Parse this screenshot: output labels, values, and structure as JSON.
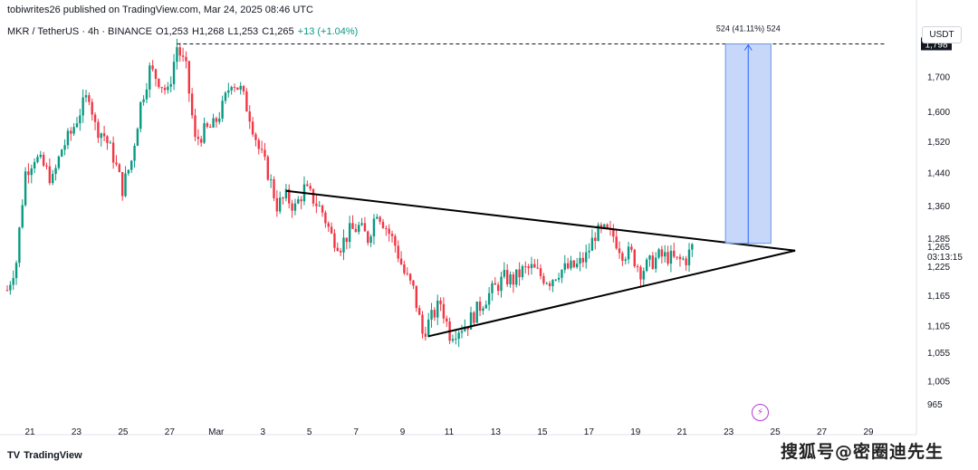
{
  "header": {
    "published": "tobiwrites26 published on TradingView.com, Mar 24, 2025 08:46 UTC",
    "symbol": "MKR / TetherUS · 4h · BINANCE",
    "open": "O1,253",
    "high": "H1,268",
    "low": "L1,253",
    "close": "C1,265",
    "change": "+13 (+1.04%)"
  },
  "currency_button": "USDT",
  "footer": {
    "logo_text": "TradingView",
    "watermark": "搜狐号@密圈迪先生"
  },
  "colors": {
    "up": "#089981",
    "down": "#f23645",
    "target_box": "#bcd0f9",
    "target_arrow": "#2962ff"
  },
  "chart_data": {
    "type": "candlestick",
    "interval": "4h",
    "x_tick_labels": [
      "21",
      "23",
      "25",
      "27",
      "Mar",
      "3",
      "5",
      "7",
      "9",
      "11",
      "13",
      "15",
      "17",
      "19",
      "21",
      "23",
      "25",
      "27",
      "29"
    ],
    "y_tick_labels": [
      1700,
      1600,
      1520,
      1440,
      1360,
      1285,
      1225,
      1165,
      1105,
      1055,
      1005,
      965
    ],
    "y_scale": "log",
    "ylim": [
      940,
      1880
    ],
    "last_price_label": "1,265",
    "countdown_label": "03:13:15",
    "target_price_label": "1,798",
    "measure_label": "524 (41.11%) 524",
    "price_path": [
      [
        0,
        1175
      ],
      [
        3,
        1235
      ],
      [
        6,
        1440
      ],
      [
        9,
        1480
      ],
      [
        12,
        1455
      ],
      [
        15,
        1420
      ],
      [
        18,
        1500
      ],
      [
        21,
        1540
      ],
      [
        24,
        1600
      ],
      [
        27,
        1650
      ],
      [
        29,
        1560
      ],
      [
        32,
        1535
      ],
      [
        35,
        1480
      ],
      [
        38,
        1400
      ],
      [
        41,
        1470
      ],
      [
        44,
        1620
      ],
      [
        47,
        1720
      ],
      [
        50,
        1690
      ],
      [
        53,
        1650
      ],
      [
        56,
        1790
      ],
      [
        59,
        1720
      ],
      [
        62,
        1520
      ],
      [
        65,
        1545
      ],
      [
        68,
        1560
      ],
      [
        71,
        1610
      ],
      [
        74,
        1690
      ],
      [
        77,
        1660
      ],
      [
        80,
        1590
      ],
      [
        83,
        1500
      ],
      [
        86,
        1440
      ],
      [
        89,
        1360
      ],
      [
        92,
        1380
      ],
      [
        95,
        1355
      ],
      [
        98,
        1400
      ],
      [
        101,
        1375
      ],
      [
        104,
        1345
      ],
      [
        107,
        1290
      ],
      [
        110,
        1270
      ],
      [
        113,
        1300
      ],
      [
        116,
        1310
      ],
      [
        119,
        1285
      ],
      [
        122,
        1350
      ],
      [
        125,
        1310
      ],
      [
        128,
        1270
      ],
      [
        131,
        1210
      ],
      [
        134,
        1175
      ],
      [
        137,
        1090
      ],
      [
        140,
        1120
      ],
      [
        143,
        1150
      ],
      [
        146,
        1090
      ],
      [
        149,
        1100
      ],
      [
        152,
        1110
      ],
      [
        155,
        1135
      ],
      [
        158,
        1160
      ],
      [
        161,
        1180
      ],
      [
        164,
        1200
      ],
      [
        167,
        1195
      ],
      [
        170,
        1215
      ],
      [
        173,
        1220
      ],
      [
        176,
        1205
      ],
      [
        179,
        1195
      ],
      [
        182,
        1215
      ],
      [
        185,
        1220
      ],
      [
        188,
        1225
      ],
      [
        191,
        1245
      ],
      [
        194,
        1295
      ],
      [
        197,
        1300
      ],
      [
        200,
        1290
      ],
      [
        203,
        1255
      ],
      [
        206,
        1250
      ],
      [
        209,
        1215
      ],
      [
        212,
        1230
      ],
      [
        215,
        1245
      ],
      [
        218,
        1245
      ],
      [
        221,
        1235
      ],
      [
        224,
        1240
      ],
      [
        226,
        1265
      ]
    ],
    "annotations": {
      "upper_trendline": [
        [
          92,
          1395
        ],
        [
          260,
          1258
        ]
      ],
      "lower_trendline": [
        [
          139,
          1085
        ],
        [
          260,
          1258
        ]
      ],
      "target_line": [
        [
          56,
          1798
        ],
        [
          290,
          1798
        ]
      ],
      "target_box": {
        "x_from": 237,
        "x_to": 252,
        "y_from": 1274,
        "y_to": 1798
      }
    }
  }
}
